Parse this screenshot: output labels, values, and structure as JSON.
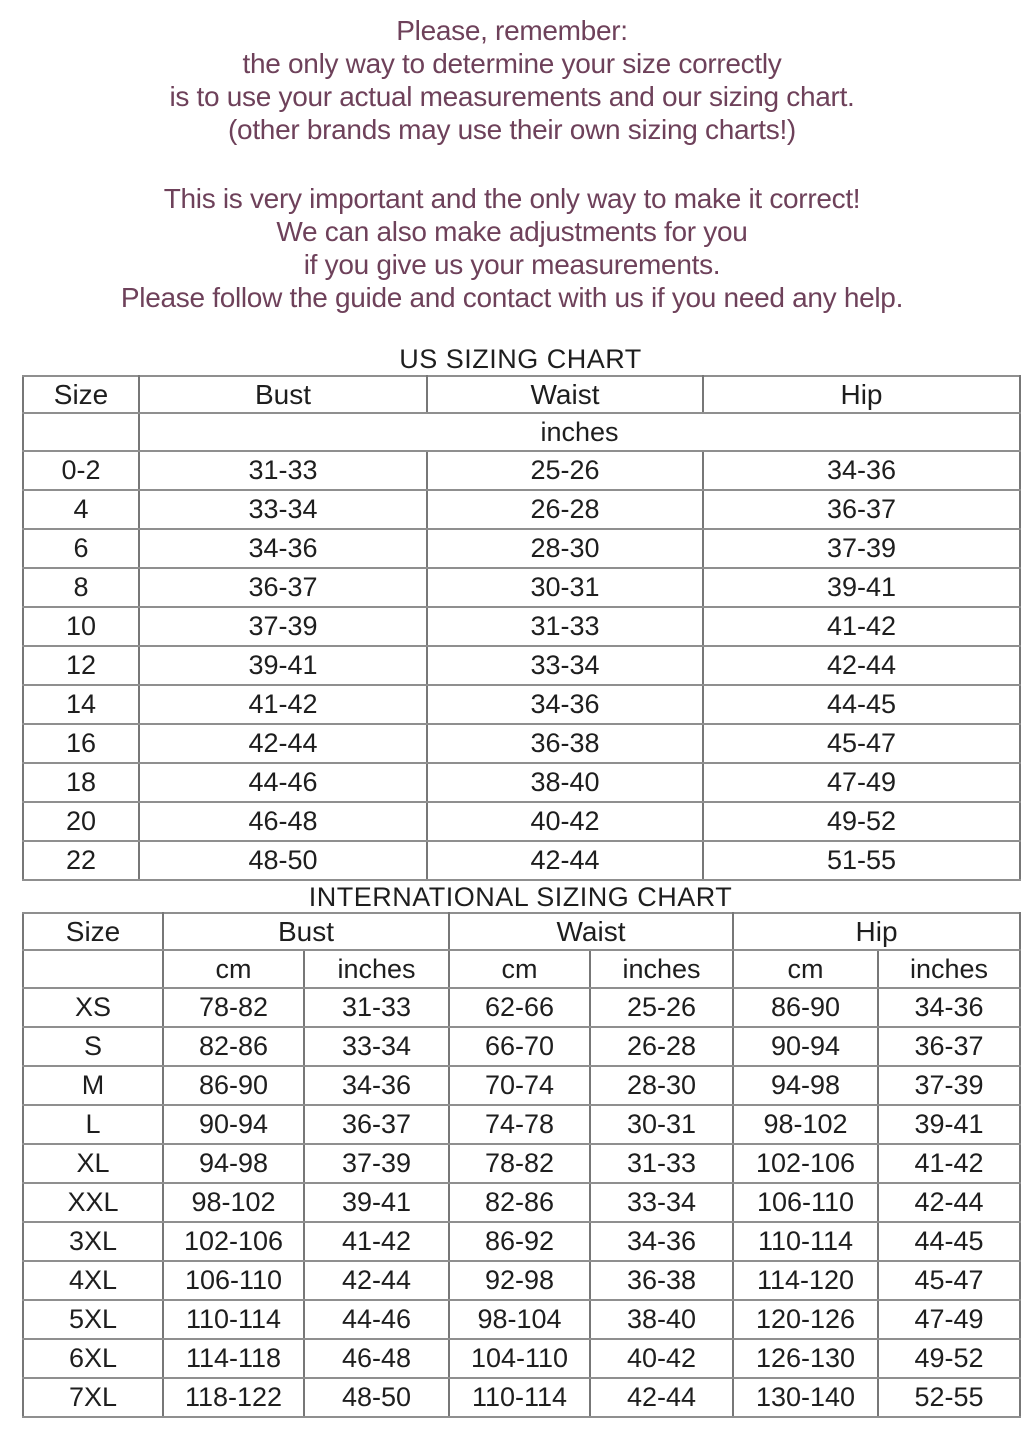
{
  "intro": {
    "paragraph1_lines": [
      "Please, remember:",
      "the only way to determine your size correctly",
      "is to use your actual measurements and our sizing chart.",
      "(other brands may use their own sizing charts!)"
    ],
    "paragraph2_lines": [
      "This is very important and the only way to make it correct!",
      "We can also make adjustments for you",
      "if you give us your measurements.",
      "Please follow the guide and contact with us if you need any help."
    ]
  },
  "us_chart": {
    "title": "US SIZING CHART",
    "columns": [
      "Size",
      "Bust",
      "Waist",
      "Hip"
    ],
    "unit_row_label": "inches",
    "rows": [
      [
        "0-2",
        "31-33",
        "25-26",
        "34-36"
      ],
      [
        "4",
        "33-34",
        "26-28",
        "36-37"
      ],
      [
        "6",
        "34-36",
        "28-30",
        "37-39"
      ],
      [
        "8",
        "36-37",
        "30-31",
        "39-41"
      ],
      [
        "10",
        "37-39",
        "31-33",
        "41-42"
      ],
      [
        "12",
        "39-41",
        "33-34",
        "42-44"
      ],
      [
        "14",
        "41-42",
        "34-36",
        "44-45"
      ],
      [
        "16",
        "42-44",
        "36-38",
        "45-47"
      ],
      [
        "18",
        "44-46",
        "38-40",
        "47-49"
      ],
      [
        "20",
        "46-48",
        "40-42",
        "49-52"
      ],
      [
        "22",
        "48-50",
        "42-44",
        "51-55"
      ]
    ]
  },
  "intl_chart": {
    "title": "INTERNATIONAL SIZING CHART",
    "columns": [
      "Size",
      "Bust",
      "Waist",
      "Hip"
    ],
    "subcolumns": [
      "cm",
      "inches"
    ],
    "rows": [
      [
        "XS",
        "78-82",
        "31-33",
        "62-66",
        "25-26",
        "86-90",
        "34-36"
      ],
      [
        "S",
        "82-86",
        "33-34",
        "66-70",
        "26-28",
        "90-94",
        "36-37"
      ],
      [
        "M",
        "86-90",
        "34-36",
        "70-74",
        "28-30",
        "94-98",
        "37-39"
      ],
      [
        "L",
        "90-94",
        "36-37",
        "74-78",
        "30-31",
        "98-102",
        "39-41"
      ],
      [
        "XL",
        "94-98",
        "37-39",
        "78-82",
        "31-33",
        "102-106",
        "41-42"
      ],
      [
        "XXL",
        "98-102",
        "39-41",
        "82-86",
        "33-34",
        "106-110",
        "42-44"
      ],
      [
        "3XL",
        "102-106",
        "41-42",
        "86-92",
        "34-36",
        "110-114",
        "44-45"
      ],
      [
        "4XL",
        "106-110",
        "42-44",
        "92-98",
        "36-38",
        "114-120",
        "45-47"
      ],
      [
        "5XL",
        "110-114",
        "44-46",
        "98-104",
        "38-40",
        "120-126",
        "47-49"
      ],
      [
        "6XL",
        "114-118",
        "46-48",
        "104-110",
        "40-42",
        "126-130",
        "49-52"
      ],
      [
        "7XL",
        "118-122",
        "48-50",
        "110-114",
        "42-44",
        "130-140",
        "52-55"
      ]
    ]
  },
  "colors": {
    "intro_text": "#6e415a",
    "table_text": "#1e1e1e",
    "border": "#7f7f7f",
    "background": "#ffffff"
  }
}
